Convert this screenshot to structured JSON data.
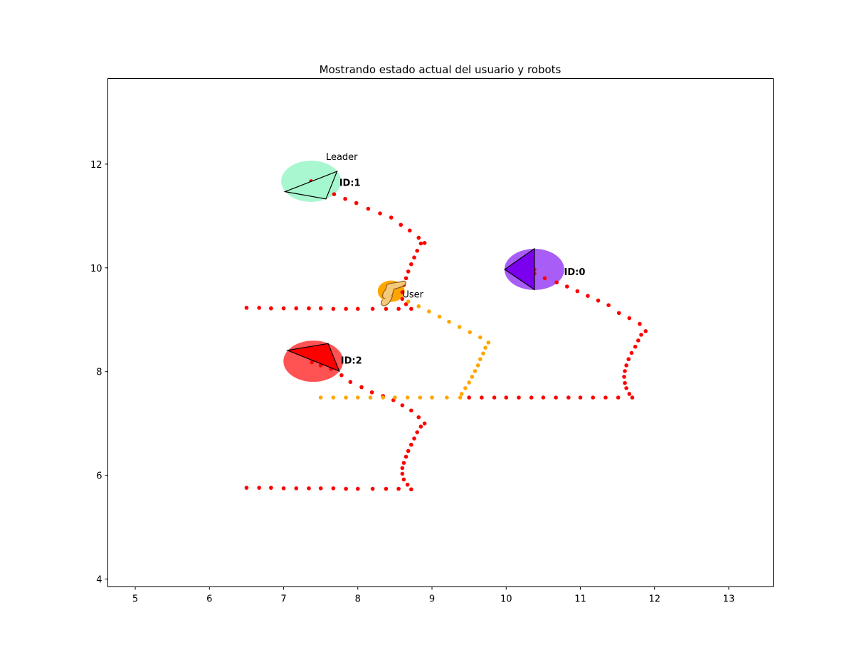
{
  "chart_data": {
    "type": "scatter",
    "title": "Mostrando estado actual del usuario y robots",
    "xlabel": "",
    "ylabel": "",
    "xlim": [
      4.63,
      13.6
    ],
    "ylim": [
      3.85,
      13.65
    ],
    "xticks": [
      5,
      6,
      7,
      8,
      9,
      10,
      11,
      12,
      13
    ],
    "yticks": [
      4,
      6,
      8,
      10,
      12
    ],
    "grid": false,
    "series": [
      {
        "color": "#ff0000",
        "points": [
          [
            6.5,
            9.23
          ],
          [
            6.67,
            9.23
          ],
          [
            6.83,
            9.22
          ],
          [
            7.0,
            9.22
          ],
          [
            7.17,
            9.22
          ],
          [
            7.34,
            9.22
          ],
          [
            7.5,
            9.22
          ],
          [
            7.67,
            9.21
          ],
          [
            7.84,
            9.21
          ],
          [
            8.0,
            9.21
          ],
          [
            8.2,
            9.21
          ],
          [
            8.38,
            9.21
          ],
          [
            8.55,
            9.21
          ],
          [
            8.72,
            9.21
          ],
          [
            8.65,
            9.3
          ],
          [
            8.6,
            9.4
          ],
          [
            8.6,
            9.53
          ],
          [
            8.62,
            9.67
          ],
          [
            8.65,
            9.8
          ],
          [
            8.68,
            9.93
          ],
          [
            8.72,
            10.07
          ],
          [
            8.76,
            10.2
          ],
          [
            8.8,
            10.33
          ],
          [
            8.85,
            10.47
          ],
          [
            8.9,
            10.48
          ],
          [
            8.82,
            10.58
          ],
          [
            8.7,
            10.72
          ],
          [
            8.58,
            10.83
          ],
          [
            8.45,
            10.97
          ],
          [
            8.3,
            11.05
          ],
          [
            8.14,
            11.14
          ],
          [
            7.98,
            11.25
          ],
          [
            7.83,
            11.33
          ],
          [
            7.68,
            11.42
          ],
          [
            7.52,
            11.5
          ],
          [
            7.37,
            11.57
          ],
          [
            7.37,
            11.67
          ]
        ]
      },
      {
        "color": "#ff0000",
        "points": [
          [
            6.5,
            5.76
          ],
          [
            6.67,
            5.76
          ],
          [
            6.83,
            5.76
          ],
          [
            7.0,
            5.75
          ],
          [
            7.17,
            5.75
          ],
          [
            7.34,
            5.75
          ],
          [
            7.5,
            5.75
          ],
          [
            7.67,
            5.75
          ],
          [
            7.84,
            5.74
          ],
          [
            8.0,
            5.74
          ],
          [
            8.2,
            5.74
          ],
          [
            8.38,
            5.74
          ],
          [
            8.55,
            5.74
          ],
          [
            8.72,
            5.73
          ],
          [
            8.67,
            5.82
          ],
          [
            8.62,
            5.92
          ],
          [
            8.6,
            6.03
          ],
          [
            8.6,
            6.14
          ],
          [
            8.62,
            6.24
          ],
          [
            8.65,
            6.36
          ],
          [
            8.68,
            6.47
          ],
          [
            8.72,
            6.59
          ],
          [
            8.76,
            6.71
          ],
          [
            8.8,
            6.83
          ],
          [
            8.85,
            6.94
          ],
          [
            8.9,
            7.0
          ],
          [
            8.82,
            7.12
          ],
          [
            8.72,
            7.25
          ],
          [
            8.6,
            7.35
          ],
          [
            8.48,
            7.45
          ],
          [
            8.34,
            7.53
          ],
          [
            8.19,
            7.6
          ],
          [
            8.05,
            7.7
          ],
          [
            7.9,
            7.8
          ],
          [
            7.78,
            7.93
          ],
          [
            7.64,
            8.05
          ],
          [
            7.5,
            8.12
          ],
          [
            7.38,
            8.18
          ]
        ]
      },
      {
        "color": "#ff0000",
        "points": [
          [
            9.5,
            7.5
          ],
          [
            9.67,
            7.5
          ],
          [
            9.84,
            7.5
          ],
          [
            10.0,
            7.5
          ],
          [
            10.17,
            7.5
          ],
          [
            10.34,
            7.5
          ],
          [
            10.5,
            7.5
          ],
          [
            10.67,
            7.5
          ],
          [
            10.84,
            7.5
          ],
          [
            11.0,
            7.5
          ],
          [
            11.17,
            7.5
          ],
          [
            11.34,
            7.5
          ],
          [
            11.51,
            7.5
          ],
          [
            11.7,
            7.5
          ],
          [
            11.66,
            7.57
          ],
          [
            11.62,
            7.68
          ],
          [
            11.6,
            7.78
          ],
          [
            11.59,
            7.9
          ],
          [
            11.6,
            8.01
          ],
          [
            11.62,
            8.12
          ],
          [
            11.65,
            8.24
          ],
          [
            11.69,
            8.36
          ],
          [
            11.74,
            8.48
          ],
          [
            11.78,
            8.6
          ],
          [
            11.82,
            8.71
          ],
          [
            11.88,
            8.78
          ],
          [
            11.8,
            8.92
          ],
          [
            11.66,
            9.03
          ],
          [
            11.52,
            9.13
          ],
          [
            11.38,
            9.28
          ],
          [
            11.24,
            9.37
          ],
          [
            11.1,
            9.46
          ],
          [
            10.96,
            9.55
          ],
          [
            10.82,
            9.64
          ],
          [
            10.68,
            9.72
          ],
          [
            10.52,
            9.8
          ],
          [
            10.38,
            9.89
          ],
          [
            10.38,
            9.97
          ]
        ]
      },
      {
        "color": "#ffa500",
        "points": [
          [
            7.5,
            7.5
          ],
          [
            7.67,
            7.5
          ],
          [
            7.84,
            7.5
          ],
          [
            8.0,
            7.5
          ],
          [
            8.17,
            7.5
          ],
          [
            8.34,
            7.5
          ],
          [
            8.5,
            7.5
          ],
          [
            8.67,
            7.5
          ],
          [
            8.84,
            7.5
          ],
          [
            9.0,
            7.5
          ],
          [
            9.2,
            7.5
          ],
          [
            9.38,
            7.5
          ],
          [
            9.4,
            7.57
          ],
          [
            9.45,
            7.68
          ],
          [
            9.5,
            7.79
          ],
          [
            9.54,
            7.9
          ],
          [
            9.58,
            8.01
          ],
          [
            9.62,
            8.12
          ],
          [
            9.65,
            8.24
          ],
          [
            9.69,
            8.35
          ],
          [
            9.72,
            8.46
          ],
          [
            9.76,
            8.56
          ],
          [
            9.65,
            8.66
          ],
          [
            9.51,
            8.76
          ],
          [
            9.37,
            8.86
          ],
          [
            9.23,
            8.96
          ],
          [
            9.1,
            9.06
          ],
          [
            8.96,
            9.16
          ],
          [
            8.82,
            9.26
          ],
          [
            8.68,
            9.35
          ],
          [
            8.56,
            9.45
          ],
          [
            8.47,
            9.53
          ]
        ]
      }
    ],
    "annotations": [
      {
        "text": "Leader",
        "x": 7.57,
        "y": 12.15,
        "bold": false
      },
      {
        "text": "ID:1",
        "x": 7.75,
        "y": 11.65,
        "bold": true
      },
      {
        "text": "ID:0",
        "x": 10.78,
        "y": 9.93,
        "bold": true
      },
      {
        "text": "User",
        "x": 8.6,
        "y": 9.5,
        "bold": false
      },
      {
        "text": "ID:2",
        "x": 7.77,
        "y": 8.22,
        "bold": true
      }
    ],
    "robots": [
      {
        "id": 1,
        "x": 7.37,
        "y": 11.67,
        "halo_color": "#a4f7cf",
        "fill": "#a4f7cf",
        "triangle": [
          [
            7.02,
            11.47
          ],
          [
            7.72,
            11.86
          ],
          [
            7.57,
            11.33
          ]
        ]
      },
      {
        "id": 0,
        "x": 10.38,
        "y": 9.97,
        "halo_color": "#a354f5",
        "fill": "#7a00ee",
        "triangle": [
          [
            9.98,
            9.97
          ],
          [
            10.38,
            10.37
          ],
          [
            10.38,
            9.58
          ]
        ]
      },
      {
        "id": 2,
        "x": 7.4,
        "y": 8.2,
        "halo_color": "#ff4a4a",
        "fill": "#ff0000",
        "triangle": [
          [
            7.05,
            8.41
          ],
          [
            7.6,
            8.54
          ],
          [
            7.75,
            8.01
          ]
        ]
      }
    ],
    "user": {
      "x": 8.45,
      "y": 9.55,
      "halo_color": "#ffa500"
    }
  }
}
